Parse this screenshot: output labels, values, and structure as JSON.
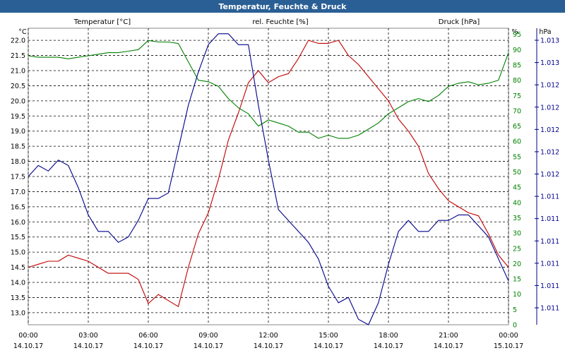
{
  "chart_data": {
    "type": "line",
    "title": "Temperatur, Feuchte & Druck",
    "x_ticks": [
      {
        "time": "00:00",
        "date": "14.10.17"
      },
      {
        "time": "03:00",
        "date": "14.10.17"
      },
      {
        "time": "06:00",
        "date": "14.10.17"
      },
      {
        "time": "09:00",
        "date": "14.10.17"
      },
      {
        "time": "12:00",
        "date": "14.10.17"
      },
      {
        "time": "15:00",
        "date": "14.10.17"
      },
      {
        "time": "18:00",
        "date": "14.10.17"
      },
      {
        "time": "21:00",
        "date": "14.10.17"
      },
      {
        "time": "00:00",
        "date": "15.10.17"
      }
    ],
    "xlim": [
      0,
      24
    ],
    "axes": {
      "temperature": {
        "label": "Temperatur [°C]",
        "unit": "°C",
        "color": "#c00000",
        "ylim": [
          12.6,
          22.4
        ],
        "ticks": [
          "13.0",
          "13.5",
          "14.0",
          "14.5",
          "15.0",
          "15.5",
          "16.0",
          "16.5",
          "17.0",
          "17.5",
          "18.0",
          "18.5",
          "19.0",
          "19.5",
          "20.0",
          "20.5",
          "21.0",
          "21.5",
          "22.0"
        ]
      },
      "humidity": {
        "label": "rel. Feuchte [%]",
        "unit": "%",
        "color": "#008000",
        "ylim": [
          0,
          97
        ],
        "ticks": [
          "0",
          "5",
          "10",
          "15",
          "20",
          "25",
          "30",
          "35",
          "40",
          "45",
          "50",
          "55",
          "60",
          "65",
          "70",
          "75",
          "80",
          "85",
          "90",
          "95"
        ]
      },
      "pressure": {
        "label": "Druck [hPa]",
        "unit": "hPa",
        "color": "#00008b",
        "ylim": [
          1010.6,
          1013.3
        ],
        "ticks": [
          "1.011",
          "1.011",
          "1.011",
          "1.011",
          "1.011",
          "1.011",
          "1.012",
          "1.012",
          "1.012",
          "1.012",
          "1.012",
          "1.013",
          "1.013"
        ]
      }
    },
    "series": [
      {
        "name": "Temperatur [°C]",
        "axis": "temperature",
        "color": "#c00000",
        "x": [
          0,
          0.5,
          1,
          1.5,
          2,
          2.5,
          3,
          3.5,
          4,
          4.5,
          5,
          5.5,
          6,
          6.5,
          7,
          7.5,
          8,
          8.5,
          9,
          9.5,
          10,
          10.5,
          11,
          11.5,
          12,
          12.5,
          13,
          13.5,
          14,
          14.5,
          15,
          15.5,
          16,
          16.5,
          17,
          17.5,
          18,
          18.5,
          19,
          19.5,
          20,
          20.5,
          21,
          21.5,
          22,
          22.5,
          23,
          23.5,
          24
        ],
        "values": [
          14.5,
          14.6,
          14.7,
          14.7,
          14.9,
          14.8,
          14.7,
          14.5,
          14.3,
          14.3,
          14.3,
          14.1,
          13.3,
          13.6,
          13.4,
          13.2,
          14.5,
          15.6,
          16.3,
          17.4,
          18.7,
          19.6,
          20.6,
          21.0,
          20.6,
          20.8,
          20.9,
          21.4,
          22.0,
          21.9,
          21.9,
          22.0,
          21.5,
          21.2,
          20.8,
          20.4,
          20.0,
          19.4,
          19.0,
          18.5,
          17.6,
          17.1,
          16.7,
          16.5,
          16.3,
          16.2,
          15.6,
          14.9,
          14.5
        ]
      },
      {
        "name": "rel. Feuchte [%]",
        "axis": "humidity",
        "color": "#008000",
        "x": [
          0,
          0.5,
          1,
          1.5,
          2,
          2.5,
          3,
          3.5,
          4,
          4.5,
          5,
          5.5,
          6,
          6.5,
          7,
          7.5,
          8,
          8.5,
          9,
          9.5,
          10,
          10.5,
          11,
          11.5,
          12,
          12.5,
          13,
          13.5,
          14,
          14.5,
          15,
          15.5,
          16,
          16.5,
          17,
          17.5,
          18,
          18.5,
          19,
          19.5,
          20,
          20.5,
          21,
          21.5,
          22,
          22.5,
          23,
          23.5,
          24
        ],
        "values": [
          88,
          87.5,
          87.5,
          87.5,
          87,
          87.5,
          88,
          88.5,
          89,
          89,
          89.5,
          90,
          93,
          92.5,
          92.5,
          92,
          86,
          80,
          79.5,
          78,
          74,
          71,
          69,
          65,
          67,
          66,
          65,
          63,
          63,
          61,
          62,
          61,
          61,
          62,
          64,
          66,
          69,
          71,
          73,
          74,
          73,
          75,
          78,
          79,
          79.5,
          78.5,
          79,
          80,
          89
        ]
      },
      {
        "name": "Druck [hPa]",
        "axis": "pressure",
        "color": "#00008b",
        "x": [
          0,
          0.5,
          1,
          1.5,
          2,
          2.5,
          3,
          3.5,
          4,
          4.5,
          5,
          5.5,
          6,
          6.5,
          7,
          7.5,
          8,
          8.5,
          9,
          9.5,
          10,
          10.5,
          11,
          11.5,
          12,
          12.5,
          13,
          13.5,
          14,
          14.5,
          15,
          15.5,
          16,
          16.5,
          17,
          17.5,
          18,
          18.5,
          19,
          19.5,
          20,
          20.5,
          21,
          21.5,
          22,
          22.5,
          23,
          23.5,
          24
        ],
        "values": [
          1011.95,
          1012.05,
          1012.0,
          1012.1,
          1012.05,
          1011.85,
          1011.6,
          1011.45,
          1011.45,
          1011.35,
          1011.4,
          1011.55,
          1011.75,
          1011.75,
          1011.8,
          1012.2,
          1012.6,
          1012.9,
          1013.15,
          1013.25,
          1013.25,
          1013.15,
          1013.15,
          1012.6,
          1012.1,
          1011.65,
          1011.55,
          1011.45,
          1011.35,
          1011.2,
          1010.95,
          1010.8,
          1010.85,
          1010.65,
          1010.6,
          1010.8,
          1011.15,
          1011.45,
          1011.55,
          1011.45,
          1011.45,
          1011.55,
          1011.55,
          1011.6,
          1011.6,
          1011.5,
          1011.4,
          1011.2,
          1011.0
        ]
      }
    ]
  }
}
